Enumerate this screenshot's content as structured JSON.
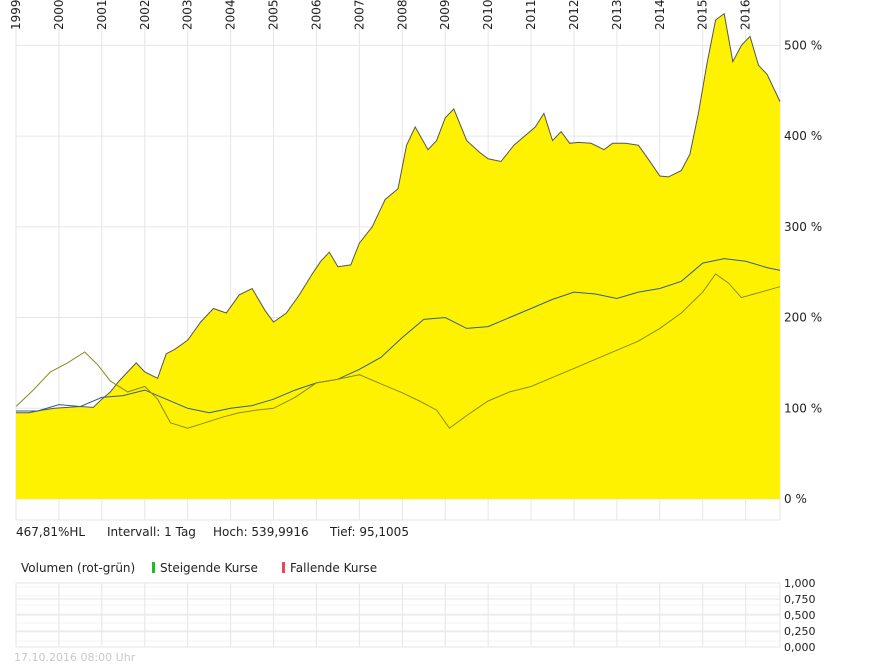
{
  "chart_data": {
    "type": "area",
    "x_tick_labels": [
      "1999",
      "2000",
      "2001",
      "2002",
      "2003",
      "2004",
      "2005",
      "2006",
      "2007",
      "2008",
      "2009",
      "2010",
      "2011",
      "2012",
      "2013",
      "2014",
      "2015",
      "2016"
    ],
    "y_tick_labels": [
      "0 %",
      "100 %",
      "200 %",
      "300 %",
      "400 %",
      "500 %"
    ],
    "ylim": [
      0,
      550
    ],
    "xlim": [
      1999.0,
      2016.8
    ],
    "grid": true,
    "colors": {
      "area_fill": "#fff200",
      "area_line": "#555555",
      "index_line_1": "#2f5f8a",
      "index_line_2": "#8a8a1c",
      "grid": "#e6e6e6"
    },
    "series": [
      {
        "style": "filled-area",
        "x": [
          1999.0,
          1999.3,
          1999.6,
          1999.9,
          2000.2,
          2000.5,
          2000.8,
          2001.0,
          2001.2,
          2001.4,
          2001.6,
          2001.8,
          2002.0,
          2002.3,
          2002.5,
          2002.7,
          2003.0,
          2003.3,
          2003.6,
          2003.9,
          2004.2,
          2004.5,
          2004.8,
          2005.0,
          2005.3,
          2005.6,
          2005.9,
          2006.1,
          2006.3,
          2006.5,
          2006.8,
          2007.0,
          2007.3,
          2007.6,
          2007.9,
          2008.1,
          2008.3,
          2008.6,
          2008.8,
          2009.0,
          2009.2,
          2009.5,
          2009.8,
          2010.0,
          2010.3,
          2010.6,
          2010.9,
          2011.1,
          2011.3,
          2011.5,
          2011.7,
          2011.9,
          2012.1,
          2012.4,
          2012.7,
          2012.9,
          2013.2,
          2013.5,
          2013.8,
          2014.0,
          2014.2,
          2014.5,
          2014.7,
          2014.9,
          2015.1,
          2015.3,
          2015.5,
          2015.7,
          2015.9,
          2016.1,
          2016.3,
          2016.5,
          2016.8
        ],
        "values": [
          95,
          95,
          98,
          100,
          101,
          102,
          101,
          110,
          118,
          130,
          140,
          150,
          140,
          133,
          160,
          165,
          175,
          195,
          210,
          205,
          225,
          232,
          208,
          195,
          205,
          225,
          248,
          262,
          272,
          256,
          258,
          282,
          300,
          330,
          342,
          390,
          410,
          385,
          395,
          420,
          430,
          395,
          382,
          375,
          372,
          390,
          402,
          410,
          425,
          395,
          405,
          392,
          393,
          392,
          385,
          392,
          392,
          390,
          370,
          356,
          355,
          362,
          380,
          425,
          480,
          528,
          535,
          482,
          500,
          510,
          478,
          468,
          438
        ]
      },
      {
        "style": "line",
        "x": [
          1999.0,
          1999.5,
          2000.0,
          2000.5,
          2001.0,
          2001.5,
          2002.0,
          2002.5,
          2003.0,
          2003.5,
          2004.0,
          2004.5,
          2005.0,
          2005.5,
          2006.0,
          2006.5,
          2007.0,
          2007.5,
          2008.0,
          2008.5,
          2009.0,
          2009.5,
          2010.0,
          2010.5,
          2011.0,
          2011.5,
          2012.0,
          2012.5,
          2013.0,
          2013.5,
          2014.0,
          2014.5,
          2015.0,
          2015.5,
          2016.0,
          2016.5,
          2016.8
        ],
        "values": [
          97,
          97,
          104,
          102,
          112,
          114,
          120,
          110,
          100,
          95,
          100,
          103,
          110,
          120,
          128,
          132,
          143,
          156,
          178,
          198,
          200,
          188,
          190,
          200,
          210,
          220,
          228,
          226,
          221,
          228,
          232,
          240,
          260,
          265,
          262,
          255,
          252
        ]
      },
      {
        "style": "line",
        "x": [
          1999.0,
          1999.4,
          1999.8,
          2000.2,
          2000.6,
          2000.9,
          2001.2,
          2001.6,
          2002.0,
          2002.3,
          2002.6,
          2003.0,
          2003.4,
          2003.8,
          2004.2,
          2004.6,
          2005.0,
          2005.5,
          2006.0,
          2006.5,
          2007.0,
          2007.5,
          2008.0,
          2008.4,
          2008.8,
          2009.1,
          2009.5,
          2010.0,
          2010.5,
          2011.0,
          2011.5,
          2012.0,
          2012.5,
          2013.0,
          2013.5,
          2014.0,
          2014.5,
          2015.0,
          2015.3,
          2015.6,
          2015.9,
          2016.2,
          2016.5,
          2016.8
        ],
        "values": [
          102,
          120,
          140,
          150,
          162,
          148,
          130,
          118,
          124,
          110,
          84,
          78,
          84,
          90,
          95,
          98,
          100,
          112,
          128,
          132,
          137,
          127,
          117,
          108,
          98,
          78,
          92,
          108,
          118,
          124,
          134,
          144,
          154,
          164,
          174,
          188,
          205,
          228,
          248,
          238,
          222,
          226,
          230,
          234
        ]
      }
    ]
  },
  "stats": {
    "performance": "467,81%HL",
    "interval": "Intervall: 1 Tag",
    "high": "Hoch: 539,9916",
    "low": "Tief: 95,1005"
  },
  "volume": {
    "title": "Volumen (rot-grün)",
    "legend_rising": "Steigende Kurse",
    "legend_falling": "Fallende Kurse",
    "rising_color": "#22bb22",
    "falling_color": "#ee4455",
    "y_tick_labels": [
      "1,000",
      "0,750",
      "0,500",
      "0,250",
      "0,000"
    ]
  },
  "footer": {
    "timestamp": "17.10.2016 08:00 Uhr"
  }
}
